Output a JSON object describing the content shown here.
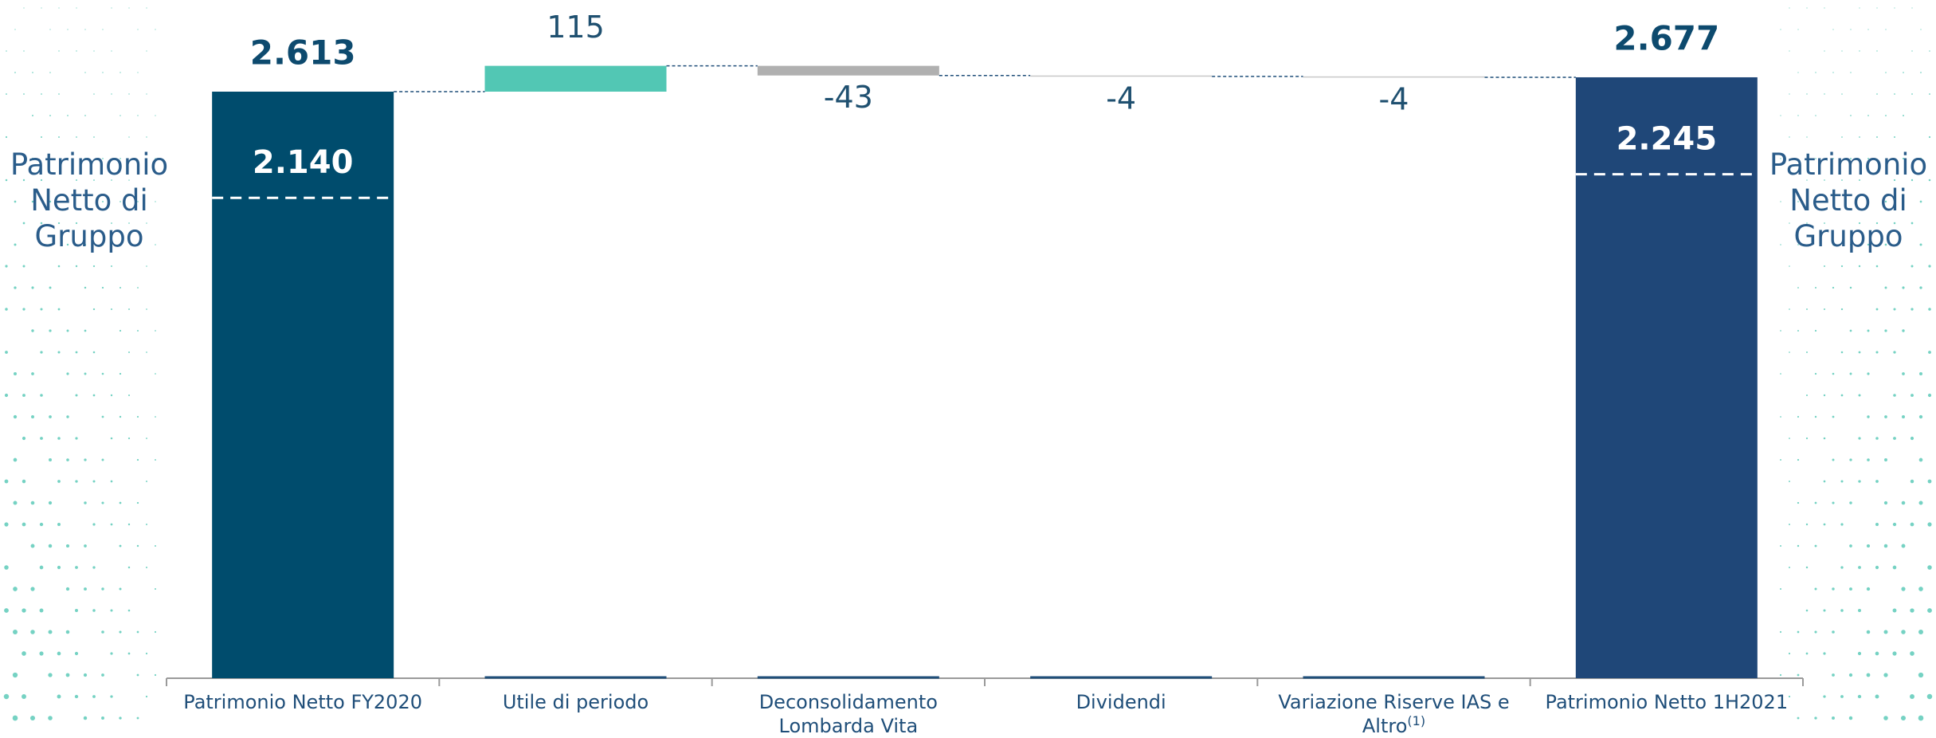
{
  "chart_data": {
    "type": "waterfall",
    "categories": [
      "Patrimonio Netto FY2020",
      "Utile di periodo",
      "Deconsolidamento Lombarda Vita",
      "Dividendi",
      "Variazione Riserve IAS e Altro",
      "Patrimonio Netto 1H2021"
    ],
    "category_superscripts": [
      null,
      null,
      null,
      null,
      "(1)",
      null
    ],
    "values": [
      2613,
      115,
      -43,
      -4,
      -4,
      2677
    ],
    "value_labels": [
      "2.613",
      "115",
      "-43",
      "-4",
      "-4",
      "2.677"
    ],
    "totals": [
      true,
      false,
      false,
      false,
      false,
      true
    ],
    "colors": [
      "#004c6d",
      "#52c7b4",
      "#b0b0b0",
      "#c8c8c8",
      "#c8c8c8",
      "#1f4778"
    ],
    "group_values": [
      2140,
      null,
      null,
      null,
      null,
      2245
    ],
    "group_value_labels": [
      "2.140",
      null,
      null,
      null,
      null,
      "2.245"
    ],
    "side_label": "Patrimonio Netto di Gruppo",
    "ylim": [
      0,
      3000
    ]
  }
}
